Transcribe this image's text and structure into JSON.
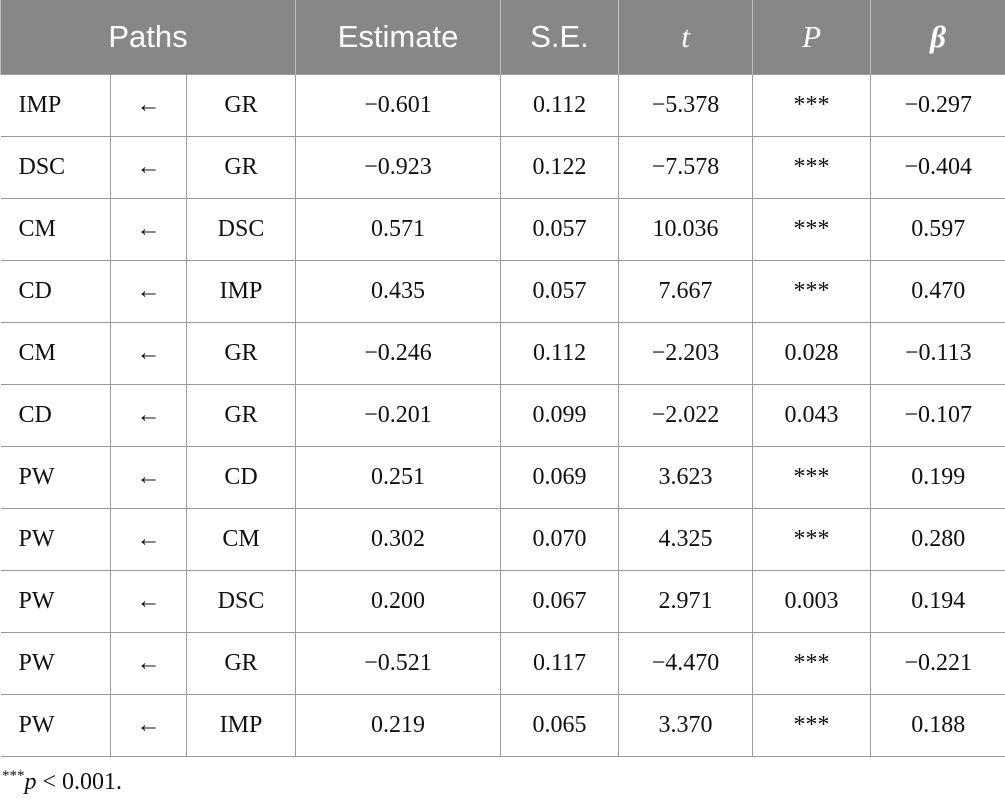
{
  "table": {
    "header": [
      "Paths",
      "Estimate",
      "S.E.",
      "t",
      "P",
      "β"
    ],
    "rows": [
      [
        "IMP",
        "←",
        "GR",
        "−0.601",
        "0.112",
        "−5.378",
        "***",
        "−0.297"
      ],
      [
        "DSC",
        "←",
        "GR",
        "−0.923",
        "0.122",
        "−7.578",
        "***",
        "−0.404"
      ],
      [
        "CM",
        "←",
        "DSC",
        "0.571",
        "0.057",
        "10.036",
        "***",
        "0.597"
      ],
      [
        "CD",
        "←",
        "IMP",
        "0.435",
        "0.057",
        "7.667",
        "***",
        "0.470"
      ],
      [
        "CM",
        "←",
        "GR",
        "−0.246",
        "0.112",
        "−2.203",
        "0.028",
        "−0.113"
      ],
      [
        "CD",
        "←",
        "GR",
        "−0.201",
        "0.099",
        "−2.022",
        "0.043",
        "−0.107"
      ],
      [
        "PW",
        "←",
        "CD",
        "0.251",
        "0.069",
        "3.623",
        "***",
        "0.199"
      ],
      [
        "PW",
        "←",
        "CM",
        "0.302",
        "0.070",
        "4.325",
        "***",
        "0.280"
      ],
      [
        "PW",
        "←",
        "DSC",
        "0.200",
        "0.067",
        "2.971",
        "0.003",
        "0.194"
      ],
      [
        "PW",
        "←",
        "GR",
        "−0.521",
        "0.117",
        "−4.470",
        "***",
        "−0.221"
      ],
      [
        "PW",
        "←",
        "IMP",
        "0.219",
        "0.065",
        "3.370",
        "***",
        "0.188"
      ]
    ]
  },
  "footnote": {
    "stars": "***",
    "symbol": "p",
    "text": " < 0.001."
  }
}
